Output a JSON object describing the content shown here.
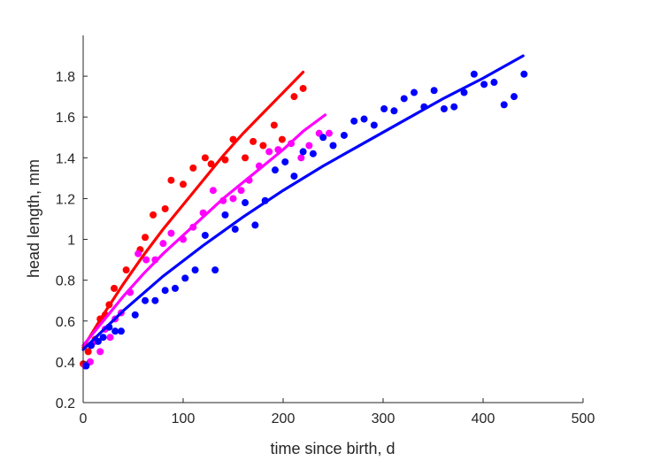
{
  "chart_data": {
    "type": "scatter",
    "xlabel": "time since birth, d",
    "ylabel": "head length, mm",
    "xlim": [
      0,
      500
    ],
    "ylim": [
      0.2,
      2.0
    ],
    "xticks": [
      0,
      100,
      200,
      300,
      400,
      500
    ],
    "yticks": [
      0.2,
      0.4,
      0.6,
      0.8,
      1,
      1.2,
      1.4,
      1.6,
      1.8
    ],
    "xtick_labels": [
      "0",
      "100",
      "200",
      "300",
      "400",
      "500"
    ],
    "ytick_labels": [
      "0.2",
      "0.4",
      "0.6",
      "0.8",
      "1",
      "1.2",
      "1.4",
      "1.6",
      "1.8"
    ],
    "grid": false,
    "series": [
      {
        "color": "#ff0000",
        "points": [
          [
            0,
            0.39
          ],
          [
            5,
            0.45
          ],
          [
            12,
            0.51
          ],
          [
            17,
            0.61
          ],
          [
            22,
            0.63
          ],
          [
            26,
            0.68
          ],
          [
            31,
            0.76
          ],
          [
            43,
            0.85
          ],
          [
            57,
            0.95
          ],
          [
            62,
            1.01
          ],
          [
            70,
            1.12
          ],
          [
            82,
            1.15
          ],
          [
            88,
            1.29
          ],
          [
            100,
            1.27
          ],
          [
            110,
            1.35
          ],
          [
            122,
            1.4
          ],
          [
            128,
            1.37
          ],
          [
            142,
            1.39
          ],
          [
            150,
            1.49
          ],
          [
            162,
            1.4
          ],
          [
            170,
            1.48
          ],
          [
            180,
            1.46
          ],
          [
            191,
            1.56
          ],
          [
            199,
            1.49
          ],
          [
            211,
            1.7
          ],
          [
            220,
            1.74
          ]
        ],
        "fit": [
          [
            0,
            0.47
          ],
          [
            20,
            0.63
          ],
          [
            40,
            0.78
          ],
          [
            60,
            0.92
          ],
          [
            80,
            1.05
          ],
          [
            100,
            1.17
          ],
          [
            120,
            1.29
          ],
          [
            140,
            1.41
          ],
          [
            160,
            1.52
          ],
          [
            180,
            1.62
          ],
          [
            200,
            1.72
          ],
          [
            220,
            1.82
          ]
        ]
      },
      {
        "color": "#ff00ff",
        "points": [
          [
            2,
            0.38
          ],
          [
            7,
            0.4
          ],
          [
            12,
            0.5
          ],
          [
            17,
            0.45
          ],
          [
            22,
            0.56
          ],
          [
            27,
            0.52
          ],
          [
            32,
            0.61
          ],
          [
            38,
            0.64
          ],
          [
            47,
            0.74
          ],
          [
            55,
            0.93
          ],
          [
            63,
            0.9
          ],
          [
            72,
            0.9
          ],
          [
            80,
            0.98
          ],
          [
            88,
            1.03
          ],
          [
            100,
            1.0
          ],
          [
            110,
            1.06
          ],
          [
            120,
            1.13
          ],
          [
            130,
            1.24
          ],
          [
            140,
            1.19
          ],
          [
            150,
            1.2
          ],
          [
            158,
            1.24
          ],
          [
            166,
            1.29
          ],
          [
            176,
            1.36
          ],
          [
            186,
            1.43
          ],
          [
            195,
            1.44
          ],
          [
            208,
            1.47
          ],
          [
            218,
            1.4
          ],
          [
            226,
            1.46
          ],
          [
            236,
            1.52
          ],
          [
            246,
            1.52
          ]
        ],
        "fit": [
          [
            0,
            0.48
          ],
          [
            20,
            0.6
          ],
          [
            40,
            0.72
          ],
          [
            60,
            0.83
          ],
          [
            80,
            0.93
          ],
          [
            100,
            1.02
          ],
          [
            120,
            1.11
          ],
          [
            140,
            1.2
          ],
          [
            160,
            1.28
          ],
          [
            180,
            1.36
          ],
          [
            200,
            1.44
          ],
          [
            220,
            1.53
          ],
          [
            242,
            1.61
          ]
        ]
      },
      {
        "color": "#0000ff",
        "points": [
          [
            3,
            0.38
          ],
          [
            8,
            0.48
          ],
          [
            15,
            0.5
          ],
          [
            20,
            0.52
          ],
          [
            26,
            0.57
          ],
          [
            32,
            0.55
          ],
          [
            38,
            0.55
          ],
          [
            52,
            0.63
          ],
          [
            62,
            0.7
          ],
          [
            72,
            0.7
          ],
          [
            82,
            0.75
          ],
          [
            92,
            0.76
          ],
          [
            102,
            0.81
          ],
          [
            112,
            0.85
          ],
          [
            122,
            1.02
          ],
          [
            132,
            0.85
          ],
          [
            142,
            1.12
          ],
          [
            152,
            1.05
          ],
          [
            162,
            1.18
          ],
          [
            172,
            1.07
          ],
          [
            182,
            1.19
          ],
          [
            192,
            1.34
          ],
          [
            202,
            1.38
          ],
          [
            211,
            1.31
          ],
          [
            220,
            1.43
          ],
          [
            230,
            1.42
          ],
          [
            240,
            1.5
          ],
          [
            250,
            1.46
          ],
          [
            261,
            1.51
          ],
          [
            271,
            1.58
          ],
          [
            281,
            1.59
          ],
          [
            291,
            1.56
          ],
          [
            301,
            1.64
          ],
          [
            311,
            1.63
          ],
          [
            321,
            1.69
          ],
          [
            331,
            1.72
          ],
          [
            341,
            1.65
          ],
          [
            351,
            1.73
          ],
          [
            361,
            1.64
          ],
          [
            371,
            1.65
          ],
          [
            381,
            1.72
          ],
          [
            391,
            1.81
          ],
          [
            401,
            1.76
          ],
          [
            411,
            1.77
          ],
          [
            421,
            1.66
          ],
          [
            431,
            1.7
          ],
          [
            441,
            1.81
          ]
        ],
        "fit": [
          [
            0,
            0.46
          ],
          [
            40,
            0.65
          ],
          [
            80,
            0.82
          ],
          [
            120,
            0.97
          ],
          [
            160,
            1.11
          ],
          [
            200,
            1.24
          ],
          [
            240,
            1.36
          ],
          [
            280,
            1.47
          ],
          [
            320,
            1.58
          ],
          [
            360,
            1.69
          ],
          [
            400,
            1.79
          ],
          [
            440,
            1.9
          ]
        ]
      }
    ]
  }
}
